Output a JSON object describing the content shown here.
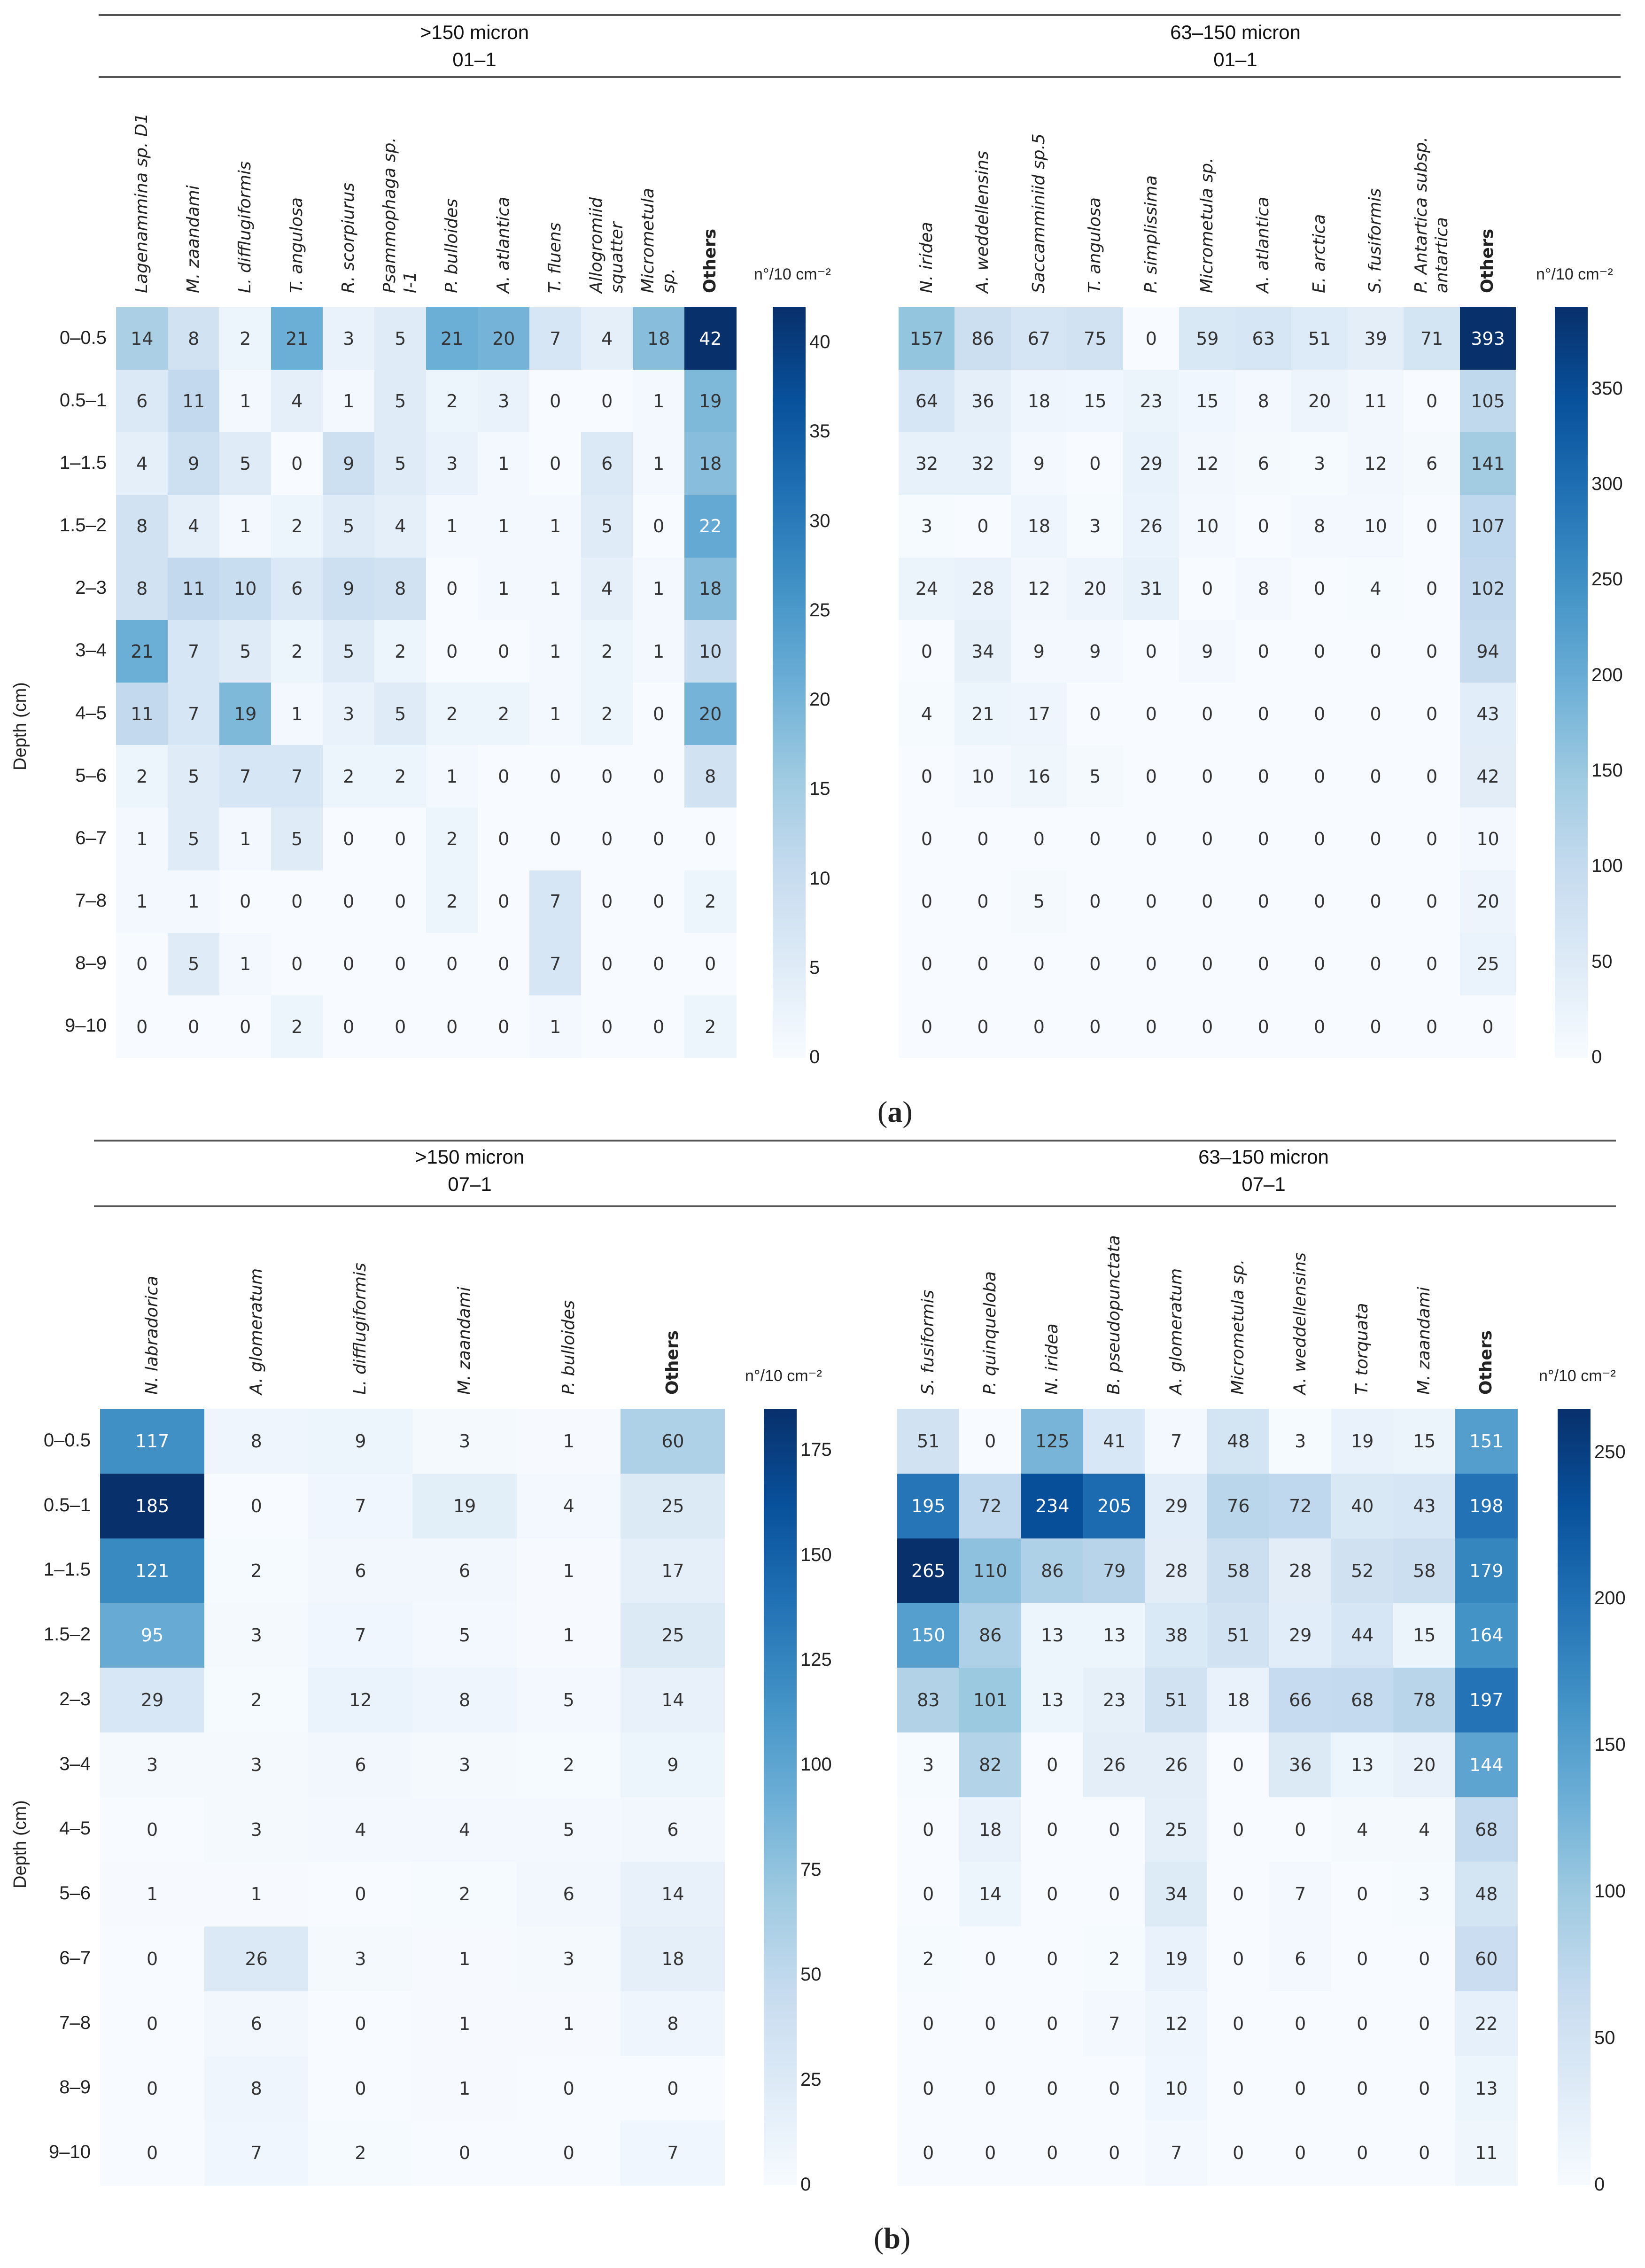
{
  "panels": [
    {
      "label": "a",
      "sections": [
        {
          "line1": ">150 micron",
          "line2": "01–1"
        },
        {
          "line1": "63–150 micron",
          "line2": "01–1"
        }
      ]
    },
    {
      "label": "b",
      "sections": [
        {
          "line1": ">150 micron",
          "line2": "07–1"
        },
        {
          "line1": "63–150 micron",
          "line2": "07–1"
        }
      ]
    }
  ],
  "ylabel": "Depth (cm)",
  "colorbar_unit": "n°/10 cm⁻²",
  "colors": [
    "#f7fbff",
    "#deebf7",
    "#c6dbef",
    "#9ecae1",
    "#6baed6",
    "#4292c6",
    "#2171b5",
    "#08519c",
    "#08306b"
  ],
  "chart_data": [
    {
      "type": "heatmap",
      "panel": "a",
      "title": ">150 micron 01–1",
      "ylabel": "Depth (cm)",
      "colorbar_label": "n°/10 cm⁻²",
      "vmin": 0,
      "vmax": 42,
      "colorbar_ticks": [
        0,
        5,
        10,
        15,
        20,
        25,
        30,
        35,
        40
      ],
      "rows": [
        "0–0.5",
        "0.5–1",
        "1–1.5",
        "1.5–2",
        "2–3",
        "3–4",
        "4–5",
        "5–6",
        "6–7",
        "7–8",
        "8–9",
        "9–10"
      ],
      "columns": [
        "Lagenammina sp. D1",
        "M. zaandami",
        "L. difflugiformis",
        "T. angulosa",
        "R. scorpiurus",
        "Psammophaga sp.\nI-1",
        "P. bulloides",
        "A. atlantica",
        "T. fluens",
        "Allogromiid\nsquatter",
        "Micrometula\nsp.",
        "Others"
      ],
      "values": [
        [
          14,
          8,
          2,
          21,
          3,
          5,
          21,
          20,
          7,
          4,
          18,
          42
        ],
        [
          6,
          11,
          1,
          4,
          1,
          5,
          2,
          3,
          0,
          0,
          1,
          19
        ],
        [
          4,
          9,
          5,
          0,
          9,
          5,
          3,
          1,
          0,
          6,
          1,
          18
        ],
        [
          8,
          4,
          1,
          2,
          5,
          4,
          1,
          1,
          1,
          5,
          0,
          22
        ],
        [
          8,
          11,
          10,
          6,
          9,
          8,
          0,
          1,
          1,
          4,
          1,
          18
        ],
        [
          21,
          7,
          5,
          2,
          5,
          2,
          0,
          0,
          1,
          2,
          1,
          10
        ],
        [
          11,
          7,
          19,
          1,
          3,
          5,
          2,
          2,
          1,
          2,
          0,
          20
        ],
        [
          2,
          5,
          7,
          7,
          2,
          2,
          1,
          0,
          0,
          0,
          0,
          8
        ],
        [
          1,
          5,
          1,
          5,
          0,
          0,
          2,
          0,
          0,
          0,
          0,
          0
        ],
        [
          1,
          1,
          0,
          0,
          0,
          0,
          2,
          0,
          7,
          0,
          0,
          2
        ],
        [
          0,
          5,
          1,
          0,
          0,
          0,
          0,
          0,
          7,
          0,
          0,
          0
        ],
        [
          0,
          0,
          0,
          2,
          0,
          0,
          0,
          0,
          1,
          0,
          0,
          2
        ]
      ]
    },
    {
      "type": "heatmap",
      "panel": "a",
      "title": "63–150 micron 01–1",
      "colorbar_label": "n°/10 cm⁻²",
      "vmin": 0,
      "vmax": 393,
      "colorbar_ticks": [
        0,
        50,
        100,
        150,
        200,
        250,
        300,
        350
      ],
      "rows": [
        "0–0.5",
        "0.5–1",
        "1–1.5",
        "1.5–2",
        "2–3",
        "3–4",
        "4–5",
        "5–6",
        "6–7",
        "7–8",
        "8–9",
        "9–10"
      ],
      "columns": [
        "N. iridea",
        "A. weddellensins",
        "Saccamminiid sp.5",
        "T. angulosa",
        "P. simplissima",
        "Micrometula sp.",
        "A. atlantica",
        "E. arctica",
        "S. fusiformis",
        "P. Antartica subsp.\nantartica",
        "Others"
      ],
      "values": [
        [
          157,
          86,
          67,
          75,
          0,
          59,
          63,
          51,
          39,
          71,
          393
        ],
        [
          64,
          36,
          18,
          15,
          23,
          15,
          8,
          20,
          11,
          0,
          105
        ],
        [
          32,
          32,
          9,
          0,
          29,
          12,
          6,
          3,
          12,
          6,
          141
        ],
        [
          3,
          0,
          18,
          3,
          26,
          10,
          0,
          8,
          10,
          0,
          107
        ],
        [
          24,
          28,
          12,
          20,
          31,
          0,
          8,
          0,
          4,
          0,
          102
        ],
        [
          0,
          34,
          9,
          9,
          0,
          9,
          0,
          0,
          0,
          0,
          94
        ],
        [
          4,
          21,
          17,
          0,
          0,
          0,
          0,
          0,
          0,
          0,
          43
        ],
        [
          0,
          10,
          16,
          5,
          0,
          0,
          0,
          0,
          0,
          0,
          42
        ],
        [
          0,
          0,
          0,
          0,
          0,
          0,
          0,
          0,
          0,
          0,
          10
        ],
        [
          0,
          0,
          5,
          0,
          0,
          0,
          0,
          0,
          0,
          0,
          20
        ],
        [
          0,
          0,
          0,
          0,
          0,
          0,
          0,
          0,
          0,
          0,
          25
        ],
        [
          0,
          0,
          0,
          0,
          0,
          0,
          0,
          0,
          0,
          0,
          0
        ]
      ]
    },
    {
      "type": "heatmap",
      "panel": "b",
      "title": ">150 micron 07–1",
      "ylabel": "Depth (cm)",
      "colorbar_label": "n°/10 cm⁻²",
      "vmin": 0,
      "vmax": 185,
      "colorbar_ticks": [
        0,
        25,
        50,
        75,
        100,
        125,
        150,
        175
      ],
      "rows": [
        "0–0.5",
        "0.5–1",
        "1–1.5",
        "1.5–2",
        "2–3",
        "3–4",
        "4–5",
        "5–6",
        "6–7",
        "7–8",
        "8–9",
        "9–10"
      ],
      "columns": [
        "N. labradorica",
        "A. glomeratum",
        "L. difflugiformis",
        "M. zaandami",
        "P. bulloides",
        "Others"
      ],
      "values": [
        [
          117,
          8,
          9,
          3,
          1,
          60
        ],
        [
          185,
          0,
          7,
          19,
          4,
          25
        ],
        [
          121,
          2,
          6,
          6,
          1,
          17
        ],
        [
          95,
          3,
          7,
          5,
          1,
          25
        ],
        [
          29,
          2,
          12,
          8,
          5,
          14
        ],
        [
          3,
          3,
          6,
          3,
          2,
          9
        ],
        [
          0,
          3,
          4,
          4,
          5,
          6
        ],
        [
          1,
          1,
          0,
          2,
          6,
          14
        ],
        [
          0,
          26,
          3,
          1,
          3,
          18
        ],
        [
          0,
          6,
          0,
          1,
          1,
          8
        ],
        [
          0,
          8,
          0,
          1,
          0,
          0
        ],
        [
          0,
          7,
          2,
          0,
          0,
          7
        ]
      ]
    },
    {
      "type": "heatmap",
      "panel": "b",
      "title": "63–150 micron 07–1",
      "colorbar_label": "n°/10 cm⁻²",
      "vmin": 0,
      "vmax": 265,
      "colorbar_ticks": [
        0,
        50,
        100,
        150,
        200,
        250
      ],
      "rows": [
        "0–0.5",
        "0.5–1",
        "1–1.5",
        "1.5–2",
        "2–3",
        "3–4",
        "4–5",
        "5–6",
        "6–7",
        "7–8",
        "8–9",
        "9–10"
      ],
      "columns": [
        "S. fusiformis",
        "P. quinqueloba",
        "N. iridea",
        "B. pseudopunctata",
        "A. glomeratum",
        "Micrometula sp.",
        "A. weddellensins",
        "T. torquata",
        "M. zaandami",
        "Others"
      ],
      "values": [
        [
          51,
          0,
          125,
          41,
          7,
          48,
          3,
          19,
          15,
          151
        ],
        [
          195,
          72,
          234,
          205,
          29,
          76,
          72,
          40,
          43,
          198
        ],
        [
          265,
          110,
          86,
          79,
          28,
          58,
          28,
          52,
          58,
          179
        ],
        [
          150,
          86,
          13,
          13,
          38,
          51,
          29,
          44,
          15,
          164
        ],
        [
          83,
          101,
          13,
          23,
          51,
          18,
          66,
          68,
          78,
          197
        ],
        [
          3,
          82,
          0,
          26,
          26,
          0,
          36,
          13,
          20,
          144
        ],
        [
          0,
          18,
          0,
          0,
          25,
          0,
          0,
          4,
          4,
          68
        ],
        [
          0,
          14,
          0,
          0,
          34,
          0,
          7,
          0,
          3,
          48
        ],
        [
          2,
          0,
          0,
          2,
          19,
          0,
          6,
          0,
          0,
          60
        ],
        [
          0,
          0,
          0,
          7,
          12,
          0,
          0,
          0,
          0,
          22
        ],
        [
          0,
          0,
          0,
          0,
          10,
          0,
          0,
          0,
          0,
          13
        ],
        [
          0,
          0,
          0,
          0,
          7,
          0,
          0,
          0,
          0,
          11
        ]
      ]
    }
  ]
}
